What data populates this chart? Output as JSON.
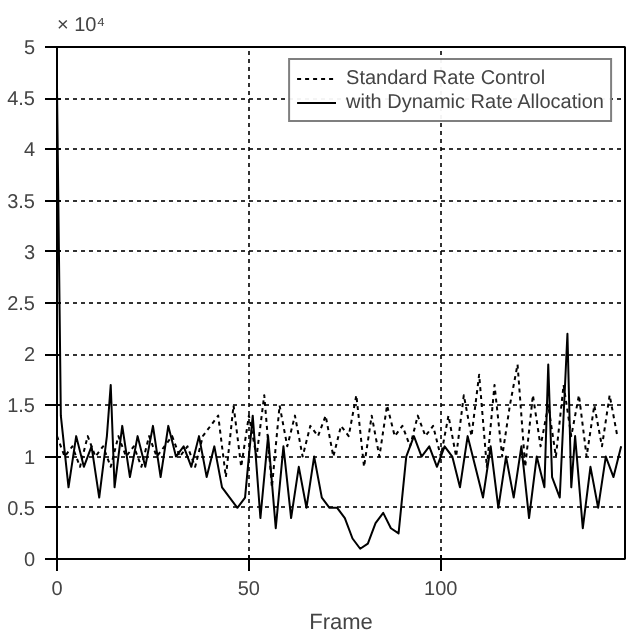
{
  "chart_data": {
    "type": "line",
    "xlabel": "Frame",
    "annotations": [
      "× 10⁴"
    ],
    "xlim": [
      0,
      148
    ],
    "xticks": [
      0,
      50,
      100
    ],
    "ylim": [
      0,
      5
    ],
    "yticks": [
      0,
      0.5,
      1,
      1.5,
      2,
      2.5,
      3,
      3.5,
      4,
      4.5,
      5
    ],
    "grid": true,
    "legend": "top right",
    "series": [
      {
        "name": "Standard Rate Control",
        "color": "#000000",
        "line_style": "dotted",
        "x": [
          0,
          2,
          4,
          6,
          8,
          10,
          12,
          14,
          16,
          18,
          20,
          22,
          24,
          26,
          28,
          30,
          32,
          34,
          36,
          38,
          40,
          42,
          44,
          46,
          48,
          50,
          52,
          54,
          56,
          58,
          60,
          62,
          64,
          66,
          68,
          70,
          72,
          74,
          76,
          78,
          80,
          82,
          84,
          86,
          88,
          90,
          92,
          94,
          96,
          98,
          100,
          102,
          104,
          106,
          108,
          110,
          112,
          114,
          116,
          118,
          120,
          122,
          124,
          126,
          128,
          130,
          132,
          134,
          136,
          138,
          140,
          142,
          144,
          146
        ],
        "values": [
          1.2,
          1.0,
          1.1,
          0.9,
          1.2,
          1.0,
          1.1,
          0.9,
          1.2,
          1.0,
          1.1,
          0.9,
          1.2,
          1.0,
          1.1,
          1.2,
          1.0,
          1.1,
          0.9,
          1.2,
          1.3,
          1.4,
          0.8,
          1.5,
          0.9,
          1.4,
          1.0,
          1.6,
          0.7,
          1.5,
          1.1,
          1.4,
          1.0,
          1.3,
          1.2,
          1.4,
          1.0,
          1.3,
          1.2,
          1.6,
          0.9,
          1.4,
          1.0,
          1.5,
          1.2,
          1.3,
          1.1,
          1.4,
          1.2,
          1.3,
          1.0,
          1.4,
          1.0,
          1.6,
          1.2,
          1.8,
          0.9,
          1.7,
          1.0,
          1.5,
          1.9,
          0.9,
          1.6,
          1.1,
          1.5,
          1.0,
          1.7,
          1.2,
          1.6,
          1.0,
          1.5,
          1.1,
          1.6,
          1.2
        ]
      },
      {
        "name": "with Dynamic Rate Allocation",
        "color": "#000000",
        "line_style": "solid",
        "x": [
          0,
          1,
          3,
          5,
          7,
          9,
          11,
          13,
          14,
          15,
          17,
          19,
          21,
          23,
          25,
          27,
          29,
          31,
          33,
          35,
          37,
          39,
          41,
          43,
          45,
          47,
          49,
          51,
          53,
          55,
          57,
          59,
          61,
          63,
          65,
          67,
          69,
          71,
          73,
          75,
          77,
          79,
          81,
          83,
          85,
          87,
          89,
          91,
          93,
          95,
          97,
          99,
          101,
          103,
          105,
          107,
          109,
          111,
          113,
          115,
          117,
          119,
          121,
          123,
          125,
          127,
          128,
          129,
          131,
          133,
          134,
          135,
          137,
          139,
          141,
          143,
          145,
          147
        ],
        "values": [
          4.6,
          1.4,
          0.7,
          1.2,
          0.9,
          1.1,
          0.6,
          1.2,
          1.7,
          0.7,
          1.3,
          0.8,
          1.2,
          0.9,
          1.3,
          0.8,
          1.3,
          1.0,
          1.1,
          0.9,
          1.2,
          0.8,
          1.1,
          0.7,
          0.6,
          0.5,
          0.6,
          1.4,
          0.4,
          1.2,
          0.3,
          1.1,
          0.4,
          0.9,
          0.5,
          1.0,
          0.6,
          0.5,
          0.5,
          0.4,
          0.2,
          0.1,
          0.15,
          0.35,
          0.45,
          0.3,
          0.25,
          1.0,
          1.2,
          1.0,
          1.1,
          0.9,
          1.1,
          1.0,
          0.7,
          1.2,
          0.9,
          0.6,
          1.1,
          0.5,
          1.0,
          0.6,
          1.1,
          0.4,
          1.0,
          0.7,
          1.9,
          0.8,
          0.6,
          2.2,
          0.7,
          1.2,
          0.3,
          0.9,
          0.5,
          1.0,
          0.8,
          1.1
        ]
      }
    ]
  }
}
